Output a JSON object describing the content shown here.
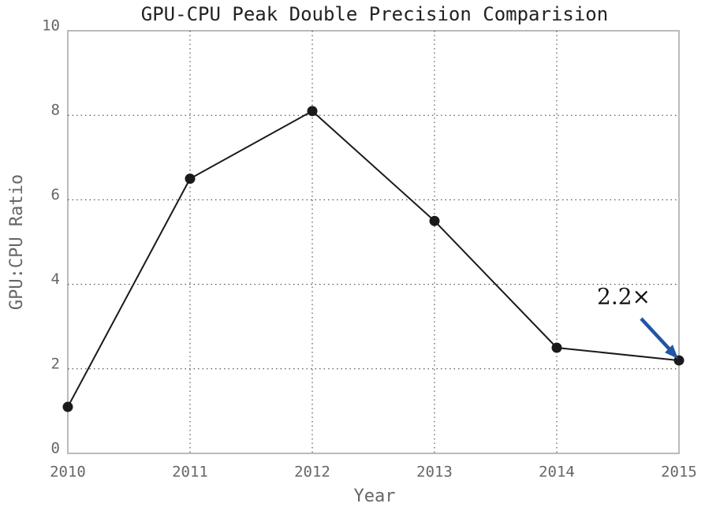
{
  "chart_data": {
    "type": "line",
    "title": "GPU-CPU Peak Double Precision Comparision",
    "xlabel": "Year",
    "ylabel": "GPU:CPU Ratio",
    "x": [
      2010,
      2011,
      2012,
      2013,
      2014,
      2015
    ],
    "series": [
      {
        "name": "GPU:CPU Ratio",
        "color": "#1a1a1a",
        "values": [
          1.1,
          6.5,
          8.1,
          5.5,
          2.5,
          2.2
        ]
      }
    ],
    "xlim": [
      2010,
      2015
    ],
    "xticks": [
      2010,
      2011,
      2012,
      2013,
      2014,
      2015
    ],
    "ylim": [
      0,
      10
    ],
    "yticks": [
      0,
      2,
      4,
      6,
      8,
      10
    ],
    "grid": true,
    "legend": false,
    "annotation": {
      "text": "2.2×",
      "color": "#2255a4"
    }
  }
}
